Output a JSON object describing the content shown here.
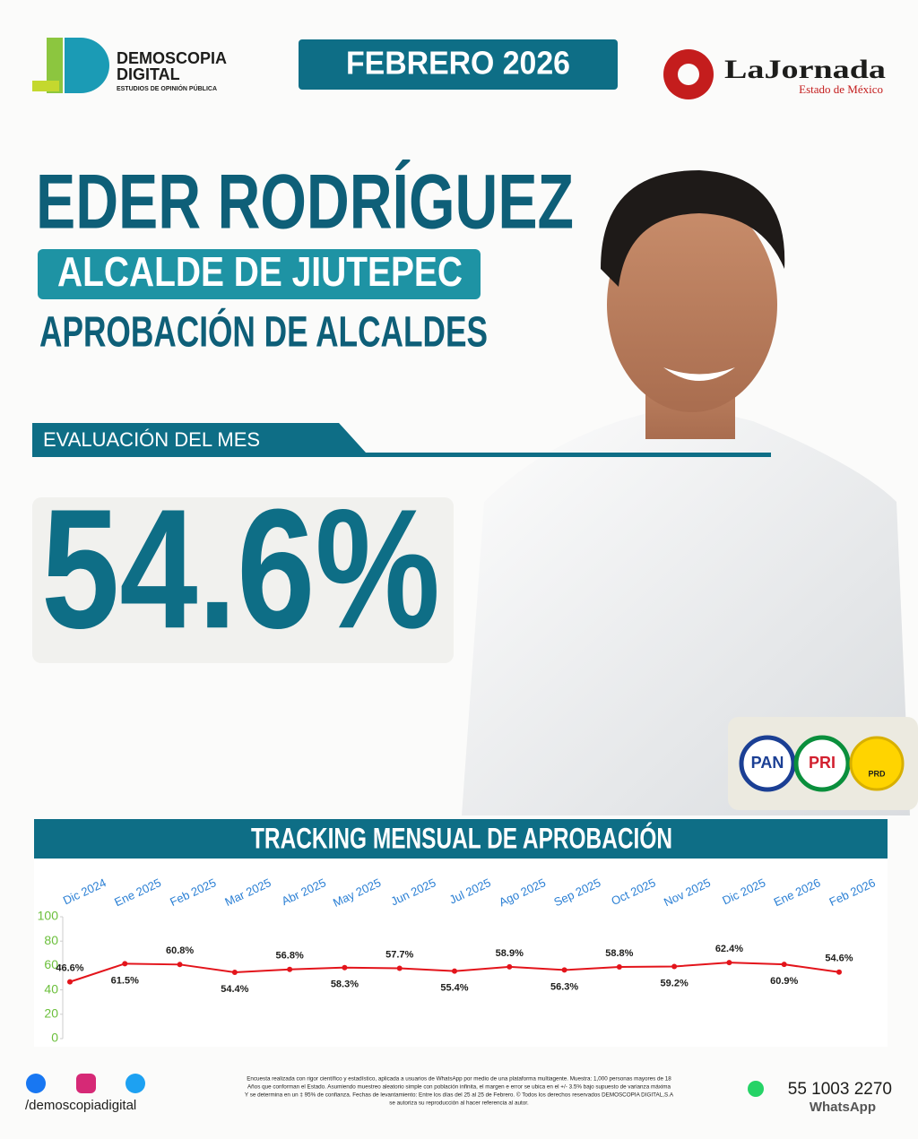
{
  "header": {
    "brand": "DEMOSCOPIA",
    "brand2": "DIGITAL",
    "brand_sub": "ESTUDIOS DE OPINIÓN PÚBLICA",
    "date": "FEBRERO 2026",
    "newspaper": "LaJornada",
    "newspaper_sub": "Estado de México"
  },
  "name": "EDER RODRÍGUEZ",
  "role": "ALCALDE DE JIUTEPEC",
  "subtitle": "APROBACIÓN DE ALCALDES",
  "evaluation": {
    "label": "EVALUACIÓN DEL MES",
    "value": "54.6%"
  },
  "parties": [
    "PAN",
    "PRI",
    "PRD"
  ],
  "chart_data": {
    "type": "line",
    "title": "TRACKING MENSUAL DE APROBACIÓN",
    "categories": [
      "Dic 2024",
      "Ene 2025",
      "Feb 2025",
      "Mar 2025",
      "Abr 2025",
      "May 2025",
      "Jun 2025",
      "Jul 2025",
      "Ago 2025",
      "Sep 2025",
      "Oct 2025",
      "Nov 2025",
      "Dic 2025",
      "Ene 2026",
      "Feb 2026"
    ],
    "series": [
      {
        "name": "Aprobación",
        "color": "#e3141b",
        "values": [
          46.6,
          61.5,
          60.8,
          54.4,
          56.8,
          58.3,
          57.7,
          55.4,
          58.9,
          56.3,
          58.8,
          59.2,
          62.4,
          60.9,
          54.6
        ],
        "value_labels": [
          "46.6%",
          "61.5%",
          "60.8%",
          "54.4%",
          "56.8%",
          "58.3%",
          "57.7%",
          "55.4%",
          "58.9%",
          "56.3%",
          "58.8%",
          "59.2%",
          "62.4%",
          "60.9%",
          "54.6%"
        ]
      }
    ],
    "ylim": [
      0,
      100
    ],
    "yticks": [
      0,
      20,
      40,
      60,
      80,
      100
    ],
    "grid": false
  },
  "footer": {
    "social": "/demoscopiadigital",
    "disclaimer": [
      "Encuesta realizada con rigor científico y estadístico, aplicada a usuarios de WhatsApp por medio de una plataforma multiagente. Muestra: 1,000 personas mayores de 18",
      "Años que conforman el Estado. Asumiendo muestreo aleatorio simple con población infinita, el margen e error se ubica en el +/- 3.5% bajo supuesto de varianza máxima",
      "Y se determina en un ‡ 95% de confianza. Fechas de levantamiento: Entre los días del 25 al 25 de Febrero. © Todos los derechos reservados DEMOSCOPIA DIGITAL,S.A",
      "se autoriza su reproducción al hacer referencia al autor."
    ],
    "phone": "55 1003 2270",
    "whatsapp": "WhatsApp"
  }
}
